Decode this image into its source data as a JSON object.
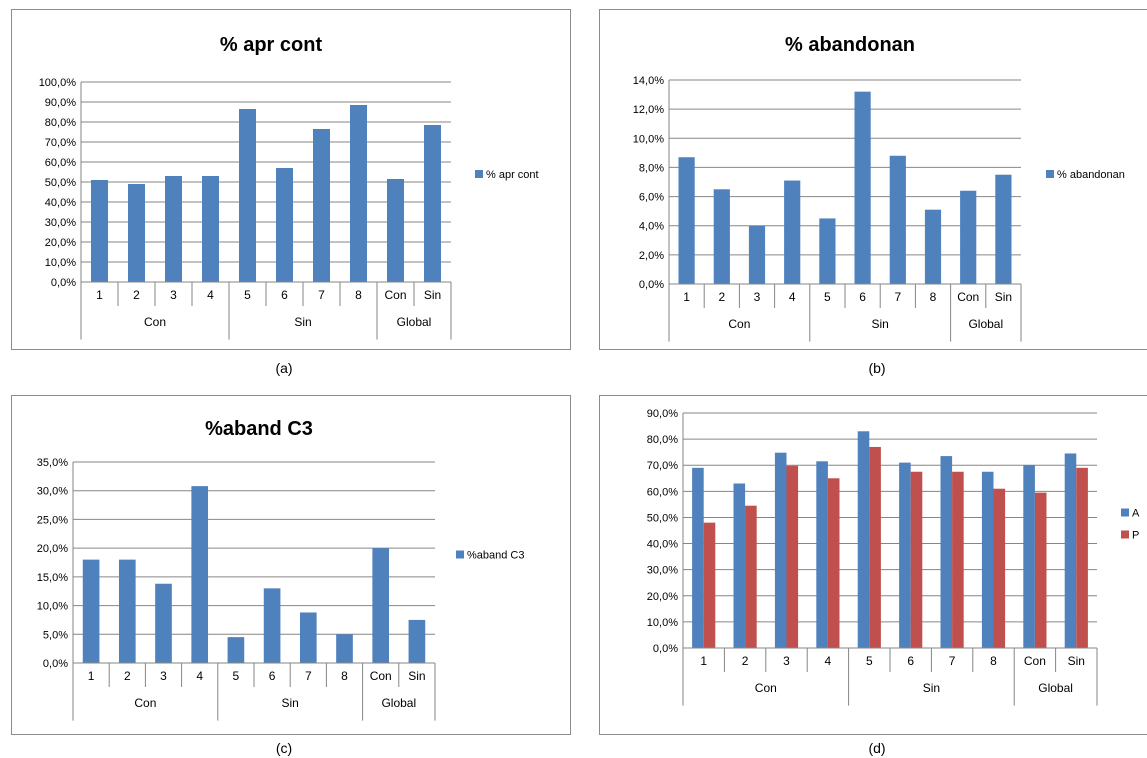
{
  "captions": [
    "(a)",
    "(b)",
    "(c)",
    "(d)"
  ],
  "colors": {
    "blue": "#4F81BD",
    "red": "#C0504D",
    "grid": "#868686"
  },
  "chart_data": [
    {
      "type": "bar",
      "title": "% apr cont",
      "categories": [
        "1",
        "2",
        "3",
        "4",
        "5",
        "6",
        "7",
        "8",
        "Con",
        "Sin"
      ],
      "groups": [
        {
          "label": "Con",
          "span": 4
        },
        {
          "label": "Sin",
          "span": 4
        },
        {
          "label": "Global",
          "span": 2
        }
      ],
      "series": [
        {
          "name": "% apr cont",
          "color": "#4F81BD",
          "values": [
            51.0,
            49.0,
            53.0,
            53.0,
            86.5,
            57.0,
            76.5,
            88.5,
            51.5,
            78.5
          ]
        }
      ],
      "ylim": [
        0,
        100
      ],
      "yticks": [
        "0,0%",
        "10,0%",
        "20,0%",
        "30,0%",
        "40,0%",
        "50,0%",
        "60,0%",
        "70,0%",
        "80,0%",
        "90,0%",
        "100,0%"
      ],
      "legend": "right",
      "grid": true
    },
    {
      "type": "bar",
      "title": "% abandonan",
      "categories": [
        "1",
        "2",
        "3",
        "4",
        "5",
        "6",
        "7",
        "8",
        "Con",
        "Sin"
      ],
      "groups": [
        {
          "label": "Con",
          "span": 4
        },
        {
          "label": "Sin",
          "span": 4
        },
        {
          "label": "Global",
          "span": 2
        }
      ],
      "series": [
        {
          "name": "% abandonan",
          "color": "#4F81BD",
          "values": [
            8.7,
            6.5,
            4.0,
            7.1,
            4.5,
            13.2,
            8.8,
            5.1,
            6.4,
            7.5
          ]
        }
      ],
      "ylim": [
        0,
        14
      ],
      "yticks": [
        "0,0%",
        "2,0%",
        "4,0%",
        "6,0%",
        "8,0%",
        "10,0%",
        "12,0%",
        "14,0%"
      ],
      "legend": "right",
      "grid": true
    },
    {
      "type": "bar",
      "title": "%aband C3",
      "categories": [
        "1",
        "2",
        "3",
        "4",
        "5",
        "6",
        "7",
        "8",
        "Con",
        "Sin"
      ],
      "groups": [
        {
          "label": "Con",
          "span": 4
        },
        {
          "label": "Sin",
          "span": 4
        },
        {
          "label": "Global",
          "span": 2
        }
      ],
      "series": [
        {
          "name": "%aband C3",
          "color": "#4F81BD",
          "values": [
            18.0,
            18.0,
            13.8,
            30.8,
            4.5,
            13.0,
            8.8,
            5.0,
            20.0,
            7.5
          ]
        }
      ],
      "ylim": [
        0,
        35
      ],
      "yticks": [
        "0,0%",
        "5,0%",
        "10,0%",
        "15,0%",
        "20,0%",
        "25,0%",
        "30,0%",
        "35,0%"
      ],
      "legend": "right",
      "grid": true
    },
    {
      "type": "bar",
      "title": "",
      "categories": [
        "1",
        "2",
        "3",
        "4",
        "5",
        "6",
        "7",
        "8",
        "Con",
        "Sin"
      ],
      "groups": [
        {
          "label": "Con",
          "span": 4
        },
        {
          "label": "Sin",
          "span": 4
        },
        {
          "label": "Global",
          "span": 2
        }
      ],
      "series": [
        {
          "name": "A",
          "color": "#4F81BD",
          "values": [
            69.0,
            63.0,
            74.8,
            71.5,
            83.0,
            71.0,
            73.5,
            67.5,
            70.0,
            74.5
          ]
        },
        {
          "name": "P",
          "color": "#C0504D",
          "values": [
            48.0,
            54.5,
            69.8,
            65.0,
            77.0,
            67.5,
            67.5,
            61.0,
            59.5,
            69.0
          ]
        }
      ],
      "ylim": [
        0,
        90
      ],
      "yticks": [
        "0,0%",
        "10,0%",
        "20,0%",
        "30,0%",
        "40,0%",
        "50,0%",
        "60,0%",
        "70,0%",
        "80,0%",
        "90,0%"
      ],
      "legend": "right",
      "grid": true
    }
  ]
}
